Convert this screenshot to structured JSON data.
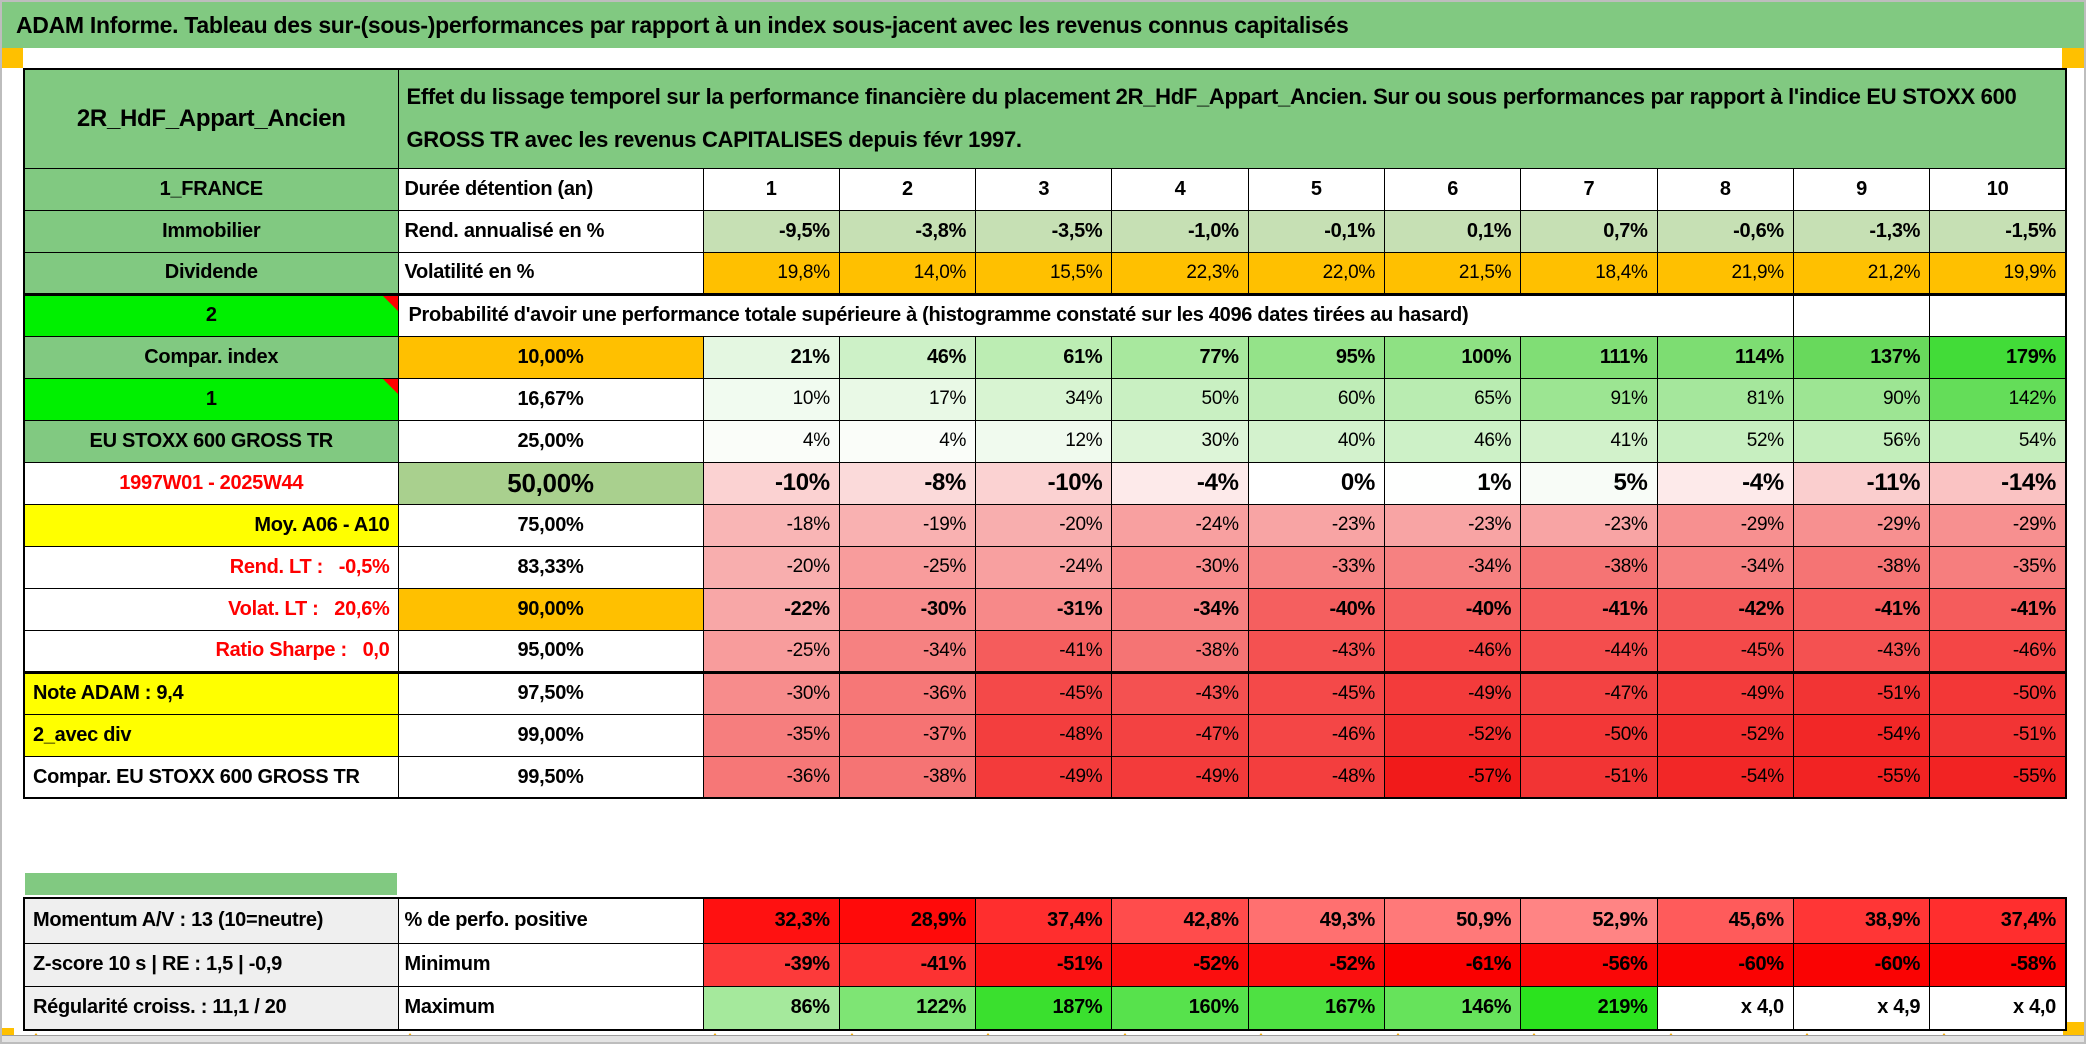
{
  "title": "ADAM Informe. Tableau des sur-(sous-)performances par rapport à un index sous-jacent avec les revenus connus capitalisés",
  "colors": {
    "main_green": "#81C981",
    "sage_green": "#A9D08E",
    "bright_green": "#00F000",
    "orange": "#FFC000",
    "yellow": "#FFFF00",
    "light_green_row": "#C6E0B4",
    "gray_label": "#EFEFEF",
    "red_text": "#FF0000",
    "comment_marker_red": "#FF0000",
    "page_marker_orange": "#FFC000"
  },
  "header": {
    "placement": "2R_HdF_Appart_Ancien",
    "description": "Effet du lissage temporel sur la performance financière du placement 2R_HdF_Appart_Ancien. Sur ou sous performances par rapport à l'indice EU STOXX 600 GROSS TR avec les revenus CAPITALISES depuis févr 1997."
  },
  "top_rows": [
    {
      "name": "sheet-header",
      "kind": "kh",
      "type": "header",
      "label": {
        "t": "2R_HdF_Appart_Ancien",
        "bg": "#81C981",
        "fg": "#000000",
        "align": "center",
        "fs": "24px"
      }
    },
    {
      "name": "duration-years",
      "type": "data",
      "label": {
        "t": "1_FRANCE",
        "bg": "#81C981",
        "fg": "#000000",
        "align": "center"
      },
      "metric": {
        "t": "Durée détention (an)",
        "bg": "#FFFFFF",
        "align": "left"
      },
      "values": [
        "1",
        "2",
        "3",
        "4",
        "5",
        "6",
        "7",
        "8",
        "9",
        "10"
      ],
      "heat": [
        "#FFFFFF",
        "#FFFFFF",
        "#FFFFFF",
        "#FFFFFF",
        "#FFFFFF",
        "#FFFFFF",
        "#FFFFFF",
        "#FFFFFF",
        "#FFFFFF",
        "#FFFFFF"
      ],
      "boldValues": true,
      "centerValues": true
    },
    {
      "name": "annualized-return",
      "kind": "kt",
      "type": "data",
      "label": {
        "t": "Immobilier",
        "bg": "#81C981",
        "fg": "#000000",
        "align": "center"
      },
      "metric": {
        "t": "Rend. annualisé en %",
        "bg": "#FFFFFF",
        "align": "left"
      },
      "values": [
        "-9,5%",
        "-3,8%",
        "-3,5%",
        "-1,0%",
        "-0,1%",
        "0,1%",
        "0,7%",
        "-0,6%",
        "-1,3%",
        "-1,5%"
      ],
      "heat": [
        "#C6E0B4",
        "#C6E0B4",
        "#C6E0B4",
        "#C6E0B4",
        "#C6E0B4",
        "#C6E0B4",
        "#C6E0B4",
        "#C6E0B4",
        "#C6E0B4",
        "#C6E0B4"
      ],
      "boldValues": true
    },
    {
      "name": "volatility",
      "type": "data",
      "label": {
        "t": "Dividende",
        "bg": "#81C981",
        "fg": "#000000",
        "align": "center"
      },
      "metric": {
        "t": "Volatilité en %",
        "bg": "#FFFFFF",
        "align": "left"
      },
      "values": [
        "19,8%",
        "14,0%",
        "15,5%",
        "22,3%",
        "22,0%",
        "21,5%",
        "18,4%",
        "21,9%",
        "21,2%",
        "19,9%"
      ],
      "heat": [
        "#FFC000",
        "#FFC000",
        "#FFC000",
        "#FFC000",
        "#FFC000",
        "#FFC000",
        "#FFC000",
        "#FFC000",
        "#FFC000",
        "#FFC000"
      ],
      "boldValues": false
    },
    {
      "name": "prob-banner",
      "type": "banner",
      "thickTop": true,
      "label": {
        "t": "2",
        "bg": "#00F000",
        "fg": "#000000",
        "align": "center",
        "note": true
      },
      "banner": "Probabilité d'avoir une performance totale supérieure à (histogramme constaté sur les 4096 dates tirées au hasard)"
    },
    {
      "name": "prob-10",
      "type": "data",
      "label": {
        "t": "Compar. index",
        "bg": "#81C981",
        "fg": "#000000",
        "align": "center"
      },
      "metric": {
        "t": "10,00%",
        "bg": "#FFC000",
        "align": "center"
      },
      "values": [
        "21%",
        "46%",
        "61%",
        "77%",
        "95%",
        "100%",
        "111%",
        "114%",
        "137%",
        "179%"
      ],
      "heat": [
        "#E4F7E1",
        "#CDF1C7",
        "#BCEDB3",
        "#A8E89E",
        "#94E389",
        "#8EE183",
        "#80DE75",
        "#7DDD72",
        "#68D95C",
        "#42DC38"
      ],
      "boldValues": true
    },
    {
      "name": "prob-16-67",
      "type": "data",
      "label": {
        "t": "1",
        "bg": "#00F000",
        "fg": "#000000",
        "align": "center",
        "note": true
      },
      "metric": {
        "t": "16,67%",
        "bg": "#FFFFFF",
        "align": "center"
      },
      "values": [
        "10%",
        "17%",
        "34%",
        "50%",
        "60%",
        "65%",
        "91%",
        "81%",
        "90%",
        "142%"
      ],
      "heat": [
        "#F1FBF0",
        "#E9F9E6",
        "#D8F4D2",
        "#C9F0C2",
        "#BFEDB7",
        "#B9ECB1",
        "#9CE592",
        "#A5E79C",
        "#9DE593",
        "#64DD59"
      ],
      "boldValues": false
    },
    {
      "name": "prob-25",
      "type": "data",
      "label": {
        "t": "EU STOXX 600 GROSS TR",
        "bg": "#81C981",
        "fg": "#000000",
        "align": "center"
      },
      "metric": {
        "t": "25,00%",
        "bg": "#FFFFFF",
        "align": "center"
      },
      "values": [
        "4%",
        "4%",
        "12%",
        "30%",
        "40%",
        "46%",
        "41%",
        "52%",
        "56%",
        "54%"
      ],
      "heat": [
        "#FAFDF9",
        "#FAFDF9",
        "#F0FAEE",
        "#DDF5D8",
        "#D3F2CD",
        "#CDF1C7",
        "#D2F2CB",
        "#C7EFC0",
        "#C3EEBB",
        "#C5EEBD"
      ],
      "boldValues": false
    },
    {
      "name": "prob-50",
      "kind": "kbig",
      "type": "data",
      "label": {
        "t": "1997W01 - 2025W44",
        "bg": "#FFFFFF",
        "fg": "#FF0000",
        "align": "center"
      },
      "metric": {
        "t": "50,00%",
        "bg": "#A9D08E",
        "align": "center",
        "big": true
      },
      "values": [
        "-10%",
        "-8%",
        "-10%",
        "-4%",
        "0%",
        "1%",
        "5%",
        "-4%",
        "-11%",
        "-14%"
      ],
      "heat": [
        "#FBD2D2",
        "#FBDADA",
        "#FBD2D2",
        "#FDEAEA",
        "#FFFFFF",
        "#FEFFFE",
        "#F8FCF7",
        "#FDEAEA",
        "#FACECE",
        "#FAC3C3"
      ],
      "boldValues": true,
      "bigValues": true
    },
    {
      "name": "prob-75",
      "type": "data",
      "label": {
        "t": "Moy. A06 - A10",
        "bg": "#FFFF00",
        "fg": "#000000",
        "align": "right"
      },
      "metric": {
        "t": "75,00%",
        "bg": "#FFFFFF",
        "align": "center"
      },
      "values": [
        "-18%",
        "-19%",
        "-20%",
        "-24%",
        "-23%",
        "-23%",
        "-23%",
        "-29%",
        "-29%",
        "-29%"
      ],
      "heat": [
        "#F9B5B5",
        "#F9B1B1",
        "#F8AEAE",
        "#F8A0A0",
        "#F8A4A4",
        "#F8A4A4",
        "#F8A4A4",
        "#F79090",
        "#F79090",
        "#F79090"
      ],
      "boldValues": false
    },
    {
      "name": "prob-83-33",
      "type": "data",
      "label": {
        "t": "Rend. LT :   -0,5%",
        "bg": "#FFFFFF",
        "fg": "#FF0000",
        "align": "right",
        "pre": true
      },
      "metric": {
        "t": "83,33%",
        "bg": "#FFFFFF",
        "align": "center"
      },
      "values": [
        "-20%",
        "-25%",
        "-24%",
        "-30%",
        "-33%",
        "-34%",
        "-38%",
        "-34%",
        "-38%",
        "-35%"
      ],
      "heat": [
        "#F8AEAE",
        "#F89C9C",
        "#F8A0A0",
        "#F78C8C",
        "#F68484",
        "#F68181",
        "#F57474",
        "#F68181",
        "#F57474",
        "#F67E7E"
      ],
      "boldValues": false
    },
    {
      "name": "prob-90",
      "kind": "k43",
      "type": "data",
      "label": {
        "t": "Volat. LT :   20,6%",
        "bg": "#FFFFFF",
        "fg": "#FF0000",
        "align": "right",
        "pre": true
      },
      "metric": {
        "t": "90,00%",
        "bg": "#FFC000",
        "align": "center"
      },
      "values": [
        "-22%",
        "-30%",
        "-31%",
        "-34%",
        "-40%",
        "-40%",
        "-41%",
        "-42%",
        "-41%",
        "-41%"
      ],
      "heat": [
        "#F8A7A7",
        "#F78C8C",
        "#F78989",
        "#F68181",
        "#F55F5F",
        "#F55F5F",
        "#F55C5C",
        "#F45858",
        "#F55C5C",
        "#F55C5C"
      ],
      "boldValues": true
    },
    {
      "name": "prob-95",
      "type": "data",
      "label": {
        "t": "Ratio Sharpe :   0,0",
        "bg": "#FFFFFF",
        "fg": "#FF0000",
        "align": "right",
        "pre": true
      },
      "metric": {
        "t": "95,00%",
        "bg": "#FFFFFF",
        "align": "center"
      },
      "values": [
        "-25%",
        "-34%",
        "-41%",
        "-38%",
        "-43%",
        "-46%",
        "-44%",
        "-45%",
        "-43%",
        "-46%"
      ],
      "heat": [
        "#F89C9C",
        "#F68181",
        "#F55C5C",
        "#F57474",
        "#F45151",
        "#F44646",
        "#F44D4D",
        "#F44949",
        "#F45151",
        "#F44646"
      ],
      "boldValues": false
    },
    {
      "name": "prob-97-5",
      "type": "data",
      "thickTop": true,
      "label": {
        "t": "Note ADAM : 9,4",
        "bg": "#FFFF00",
        "fg": "#000000",
        "align": "left"
      },
      "metric": {
        "t": "97,50%",
        "bg": "#FFFFFF",
        "align": "center"
      },
      "values": [
        "-30%",
        "-36%",
        "-45%",
        "-43%",
        "-45%",
        "-49%",
        "-47%",
        "-49%",
        "-51%",
        "-50%"
      ],
      "heat": [
        "#F78C8C",
        "#F67777",
        "#F44949",
        "#F45151",
        "#F44949",
        "#F33B3B",
        "#F34242",
        "#F33B3B",
        "#F23434",
        "#F33737"
      ],
      "boldValues": false
    },
    {
      "name": "prob-99",
      "type": "data",
      "label": {
        "t": "2_avec div",
        "bg": "#FFFF00",
        "fg": "#000000",
        "align": "left"
      },
      "metric": {
        "t": "99,00%",
        "bg": "#FFFFFF",
        "align": "center"
      },
      "values": [
        "-35%",
        "-37%",
        "-48%",
        "-47%",
        "-46%",
        "-52%",
        "-50%",
        "-52%",
        "-54%",
        "-51%"
      ],
      "heat": [
        "#F67E7E",
        "#F67373",
        "#F33E3E",
        "#F34242",
        "#F44646",
        "#F22F2F",
        "#F33737",
        "#F22F2F",
        "#F22727",
        "#F23434"
      ],
      "boldValues": false
    },
    {
      "name": "prob-99-5",
      "type": "data",
      "label": {
        "t": "Compar. EU STOXX 600 GROSS TR",
        "bg": "#FFFFFF",
        "fg": "#000000",
        "align": "left"
      },
      "metric": {
        "t": "99,50%",
        "bg": "#FFFFFF",
        "align": "center"
      },
      "values": [
        "-36%",
        "-38%",
        "-49%",
        "-49%",
        "-48%",
        "-57%",
        "-51%",
        "-54%",
        "-55%",
        "-55%"
      ],
      "heat": [
        "#F67777",
        "#F57474",
        "#F33B3B",
        "#F33B3B",
        "#F33E3E",
        "#F11A1A",
        "#F23434",
        "#F22727",
        "#F22323",
        "#F22323"
      ],
      "boldValues": false
    }
  ],
  "bottom_rows": [
    {
      "name": "pct-positive",
      "kind": "kbtm1",
      "type": "data",
      "label": {
        "t": "Momentum A/V : 13 (10=neutre)",
        "bg": "#EFEFEF",
        "fg": "#000000",
        "align": "left"
      },
      "metric": {
        "t": "% de perfo. positive",
        "bg": "#FFFFFF",
        "align": "left"
      },
      "values": [
        "32,3%",
        "28,9%",
        "37,4%",
        "42,8%",
        "49,3%",
        "50,9%",
        "52,9%",
        "45,6%",
        "38,9%",
        "37,4%"
      ],
      "heat": [
        "#FF1111",
        "#FF0A0A",
        "#FF2E2E",
        "#FF4C4C",
        "#FF7070",
        "#FF7979",
        "#FF8484",
        "#FF5B5B",
        "#FF3636",
        "#FF2E2E"
      ],
      "boldValues": true
    },
    {
      "name": "minimum",
      "type": "data",
      "label": {
        "t": "Z-score 10 s | RE : 1,5 | -0,9",
        "bg": "#EFEFEF",
        "fg": "#000000",
        "align": "left"
      },
      "metric": {
        "t": "Minimum",
        "bg": "#FFFFFF",
        "align": "left"
      },
      "values": [
        "-39%",
        "-41%",
        "-51%",
        "-52%",
        "-52%",
        "-61%",
        "-56%",
        "-60%",
        "-60%",
        "-58%"
      ],
      "heat": [
        "#FC3A3A",
        "#FC3232",
        "#FB1212",
        "#FB0E0E",
        "#FB0E0E",
        "#FA0000",
        "#FA0707",
        "#FA0303",
        "#FA0303",
        "#FA0505"
      ],
      "boldValues": true
    },
    {
      "name": "maximum",
      "kind": "kbtm3",
      "type": "data",
      "label": {
        "t": "Régularité croiss. : 11,1 / 20",
        "bg": "#EFEFEF",
        "fg": "#000000",
        "align": "left"
      },
      "metric": {
        "t": "Maximum",
        "bg": "#FFFFFF",
        "align": "left"
      },
      "values": [
        "86%",
        "122%",
        "187%",
        "160%",
        "167%",
        "146%",
        "219%",
        "x 4,0",
        "x 4,9",
        "x 4,0"
      ],
      "heat": [
        "#A5E99C",
        "#7EE574",
        "#3AE02E",
        "#57E24C",
        "#4EE142",
        "#66E35B",
        "#2BE31E",
        "#FFFFFF",
        "#FFFFFF",
        "#FFFFFF"
      ],
      "boldValues": true
    }
  ]
}
